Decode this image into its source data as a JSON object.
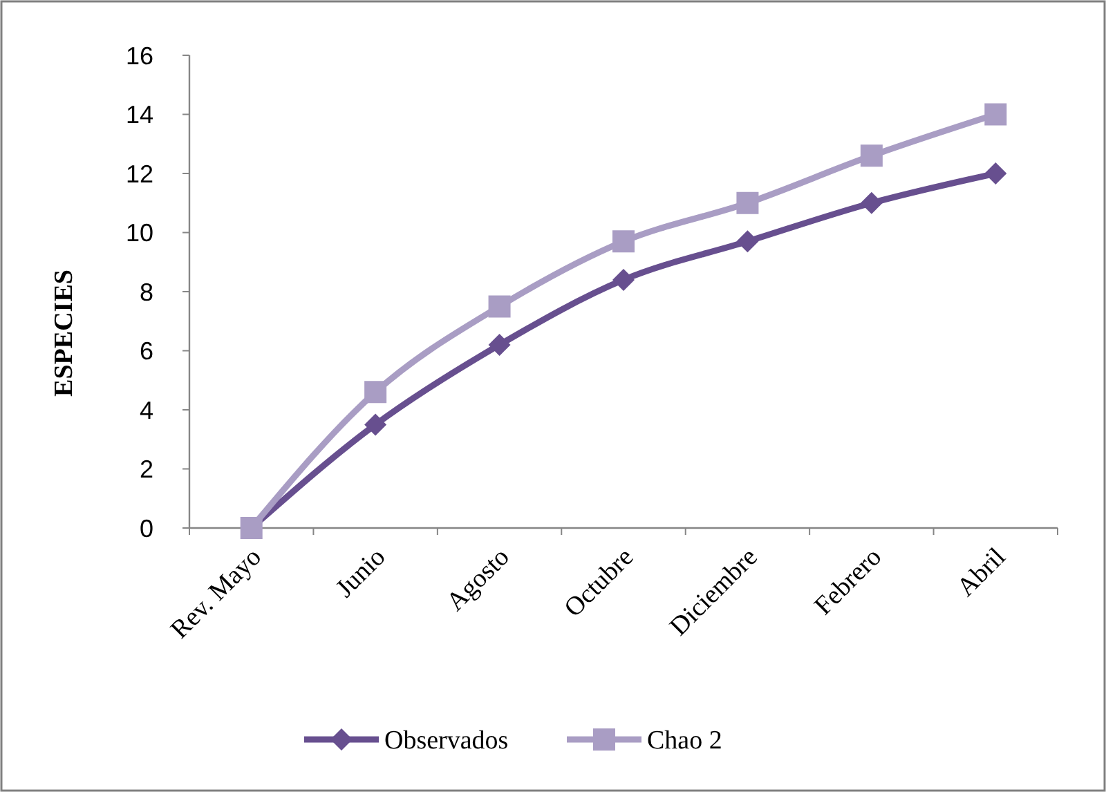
{
  "chart_data": {
    "type": "line",
    "ylabel": "ESPECIES",
    "categories": [
      "Rev. Mayo",
      "Junio",
      "Agosto",
      "Octubre",
      "Diciembre",
      "Febrero",
      "Abril"
    ],
    "series": [
      {
        "name": "Observados",
        "color": "#674f8f",
        "marker": "diamond",
        "values": [
          0,
          3.5,
          6.2,
          8.4,
          9.7,
          11.0,
          12.0
        ]
      },
      {
        "name": "Chao 2",
        "color": "#a99dc4",
        "marker": "square",
        "values": [
          0,
          4.6,
          7.5,
          9.7,
          11.0,
          12.6,
          14.0
        ]
      }
    ],
    "ylim": [
      0,
      16
    ],
    "yticks": [
      0,
      2,
      4,
      6,
      8,
      10,
      12,
      14,
      16
    ],
    "grid": false,
    "legend": "bottom",
    "line_style": "solid"
  }
}
